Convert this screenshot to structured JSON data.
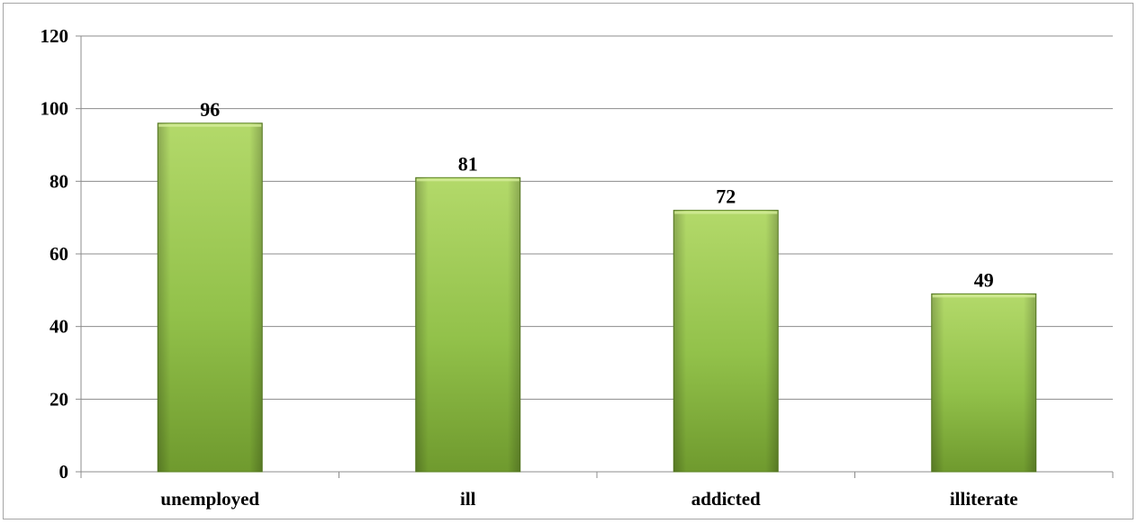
{
  "chart_data": {
    "type": "bar",
    "title": "",
    "xlabel": "",
    "ylabel": "",
    "categories": [
      "unemployed",
      "ill",
      "addicted",
      "illiterate"
    ],
    "values": [
      96,
      81,
      72,
      49
    ],
    "ylim": [
      0,
      120
    ],
    "yticks": [
      0,
      20,
      40,
      60,
      80,
      100,
      120
    ],
    "grid": true,
    "legend": "none",
    "data_labels": true,
    "colors": {
      "bar_top": "#b3d96a",
      "bar_mid": "#92c14a",
      "bar_bottom": "#6f9a2e",
      "bar_edge": "#5e8426",
      "grid": "#8c8c8c",
      "axis": "#8c8c8c"
    }
  }
}
